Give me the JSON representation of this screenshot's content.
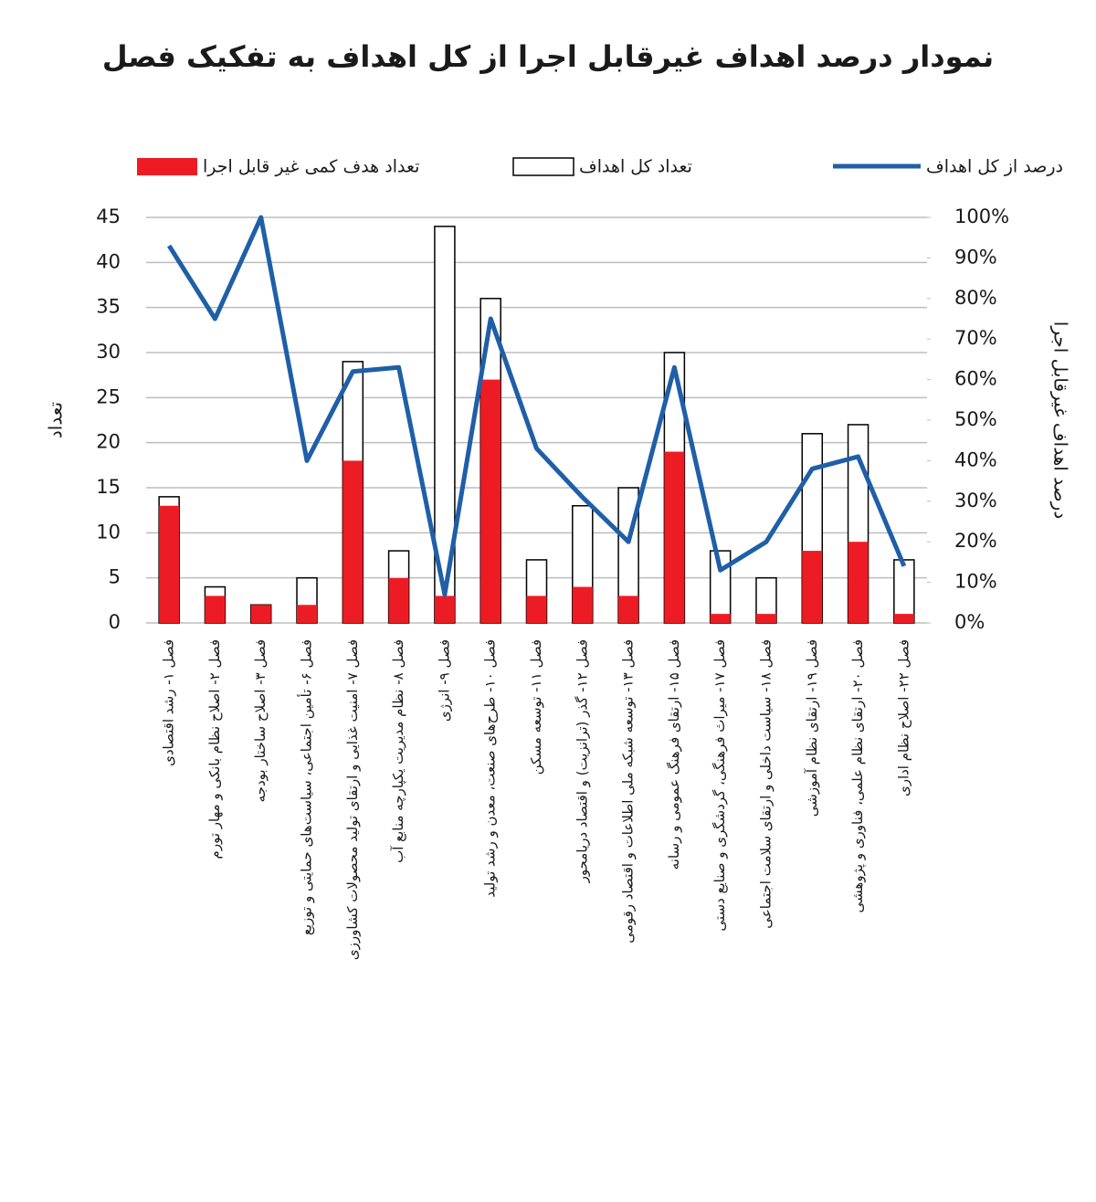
{
  "chart_data": {
    "type": "bar",
    "title": "نمودار درصد اهداف غیرقابل اجرا از کل اهداف به تفکیک فصل",
    "y_label": "تعداد",
    "y2_label": "درصد اهداف غیرقابل اجرا",
    "categories": [
      "فصل ۱- رشد اقتصادی",
      "فصل ۲- اصلاح نظام بانکی و مهار تورم",
      "فصل ۳- اصلاح ساختار بودجه",
      "فصل ۶- تأمین اجتماعی، سیاست‌های حمایتی و توزیع",
      "فصل ۷- امنیت غذایی و ارتقای تولید محصولات کشاورزی",
      "فصل ۸- نظام مدیریت یکپارچه منابع آب",
      "فصل ۹- انرژی",
      "فصل ۱۰- طرح‌های صنعت، معدن و رشد تولید",
      "فصل ۱۱- توسعه مسکن",
      "فصل ۱۲- گذر (ترانزیت) و اقتصاد دریامحور",
      "فصل ۱۳- توسعه شبکه ملی اطلاعات و اقتصاد رقومی",
      "فصل ۱۵- ارتقای فرهنگ عمومی و رسانه",
      "فصل ۱۷- میراث فرهنگی، گردشگری و صنایع دستی",
      "فصل ۱۸- سیاست داخلی و ارتقای سلامت اجتماعی",
      "فصل ۱۹- ارتقای نظام آموزشی",
      "فصل ۲۰- ارتقای نظام علمی، فناوری و پژوهشی",
      "فصل ۲۲- اصلاح نظام اداری"
    ],
    "series": [
      {
        "name": "تعداد هدف کمی غیر قابل اجرا",
        "type": "bar",
        "color": "#ed1c24",
        "values": [
          13,
          3,
          2,
          2,
          18,
          5,
          3,
          27,
          3,
          4,
          3,
          19,
          1,
          1,
          8,
          9,
          1
        ]
      },
      {
        "name": "تعداد کل اهداف",
        "type": "bar",
        "color": "#ffffff",
        "values": [
          14,
          4,
          2,
          5,
          29,
          8,
          44,
          36,
          7,
          13,
          15,
          30,
          8,
          5,
          21,
          22,
          7
        ]
      },
      {
        "name": "درصد از کل اهداف",
        "type": "line",
        "color": "#1f5fa8",
        "axis": "y2",
        "values": [
          93,
          75,
          100,
          40,
          62,
          63,
          7,
          75,
          43,
          31,
          20,
          63,
          13,
          20,
          38,
          41,
          14
        ]
      }
    ],
    "ylim": [
      0,
      45
    ],
    "yticks": [
      0,
      5,
      10,
      15,
      20,
      25,
      30,
      35,
      40,
      45
    ],
    "y2lim": [
      0,
      100
    ],
    "y2ticks": [
      {
        "value": 0,
        "label": "0%"
      },
      {
        "value": 10,
        "label": "10%"
      },
      {
        "value": 20,
        "label": "20%"
      },
      {
        "value": 30,
        "label": "30%"
      },
      {
        "value": 40,
        "label": "40%"
      },
      {
        "value": 50,
        "label": "50%"
      },
      {
        "value": 60,
        "label": "60%"
      },
      {
        "value": 70,
        "label": "70%"
      },
      {
        "value": 80,
        "label": "80%"
      },
      {
        "value": 90,
        "label": "90%"
      },
      {
        "value": 100,
        "label": "100%"
      }
    ],
    "grid": true
  }
}
